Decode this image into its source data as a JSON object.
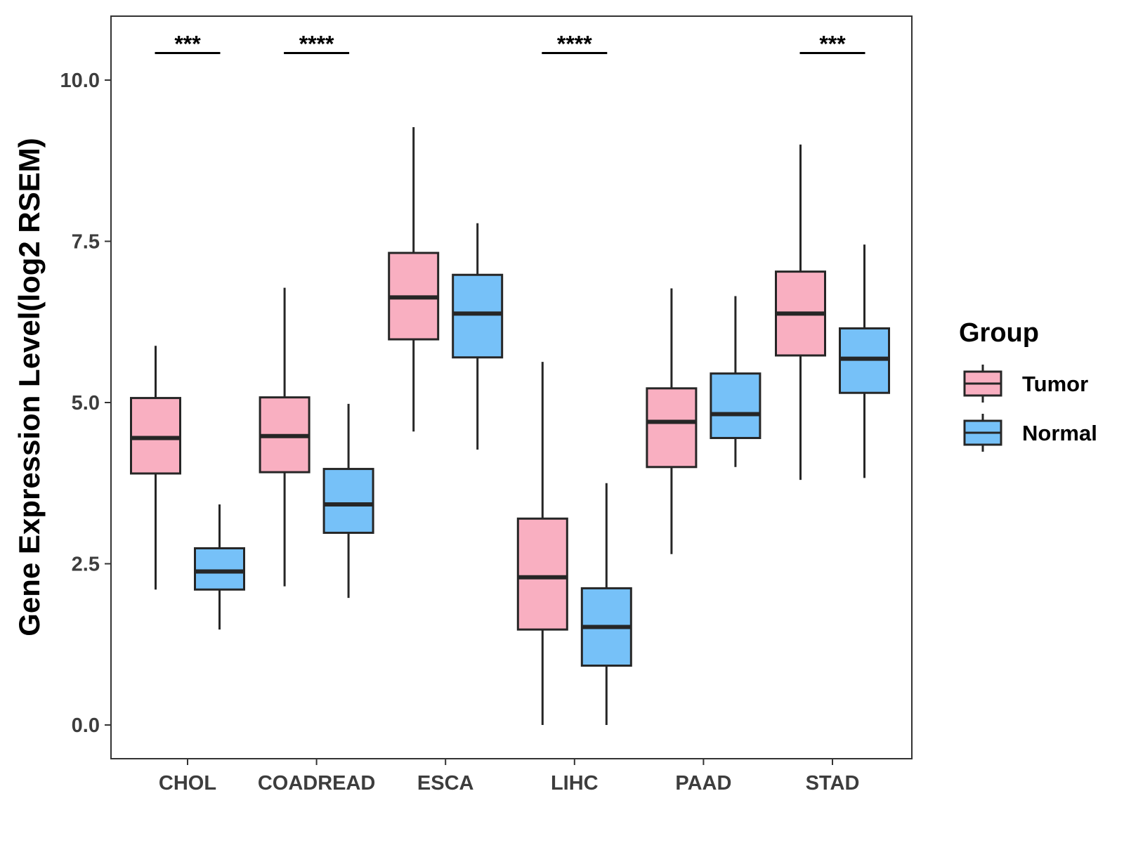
{
  "chart_data": {
    "type": "boxplot",
    "title": "",
    "xlabel": "",
    "ylabel": "Gene Expression Level(log2 RSEM)",
    "ylim": [
      -0.5,
      11.0
    ],
    "yticks": [
      0.0,
      2.5,
      5.0,
      7.5,
      10.0
    ],
    "ytick_labels": [
      "0.0",
      "2.5",
      "5.0",
      "7.5",
      "10.0"
    ],
    "categories": [
      "CHOL",
      "COADREAD",
      "ESCA",
      "LIHC",
      "PAAD",
      "STAD"
    ],
    "legend": {
      "title": "Group",
      "placement": "right",
      "entries": [
        "Tumor",
        "Normal"
      ]
    },
    "series": [
      {
        "name": "Tumor",
        "color": "#F9AFC1",
        "boxes": [
          {
            "category": "CHOL",
            "whisker_low": 2.1,
            "q1": 3.9,
            "median": 4.45,
            "q3": 5.07,
            "whisker_high": 5.88
          },
          {
            "category": "COADREAD",
            "whisker_low": 2.15,
            "q1": 3.92,
            "median": 4.48,
            "q3": 5.08,
            "whisker_high": 6.78
          },
          {
            "category": "ESCA",
            "whisker_low": 4.55,
            "q1": 5.98,
            "median": 6.63,
            "q3": 7.32,
            "whisker_high": 9.27
          },
          {
            "category": "LIHC",
            "whisker_low": 0.0,
            "q1": 1.48,
            "median": 2.29,
            "q3": 3.2,
            "whisker_high": 5.63
          },
          {
            "category": "PAAD",
            "whisker_low": 2.65,
            "q1": 4.0,
            "median": 4.7,
            "q3": 5.22,
            "whisker_high": 6.77
          },
          {
            "category": "STAD",
            "whisker_low": 3.8,
            "q1": 5.73,
            "median": 6.38,
            "q3": 7.03,
            "whisker_high": 9.0
          }
        ]
      },
      {
        "name": "Normal",
        "color": "#76C1F8",
        "boxes": [
          {
            "category": "CHOL",
            "whisker_low": 1.48,
            "q1": 2.1,
            "median": 2.38,
            "q3": 2.74,
            "whisker_high": 3.42
          },
          {
            "category": "COADREAD",
            "whisker_low": 1.97,
            "q1": 2.98,
            "median": 3.42,
            "q3": 3.97,
            "whisker_high": 4.98
          },
          {
            "category": "ESCA",
            "whisker_low": 4.27,
            "q1": 5.7,
            "median": 6.38,
            "q3": 6.98,
            "whisker_high": 7.78
          },
          {
            "category": "LIHC",
            "whisker_low": 0.0,
            "q1": 0.92,
            "median": 1.52,
            "q3": 2.12,
            "whisker_high": 3.75
          },
          {
            "category": "PAAD",
            "whisker_low": 4.0,
            "q1": 4.45,
            "median": 4.82,
            "q3": 5.45,
            "whisker_high": 6.65
          },
          {
            "category": "STAD",
            "whisker_low": 3.83,
            "q1": 5.15,
            "median": 5.68,
            "q3": 6.15,
            "whisker_high": 7.45
          }
        ]
      }
    ],
    "significance": [
      {
        "category": "CHOL",
        "label": "***",
        "y": 10.42
      },
      {
        "category": "COADREAD",
        "label": "****",
        "y": 10.42
      },
      {
        "category": "LIHC",
        "label": "****",
        "y": 10.42
      },
      {
        "category": "STAD",
        "label": "***",
        "y": 10.42
      }
    ]
  }
}
